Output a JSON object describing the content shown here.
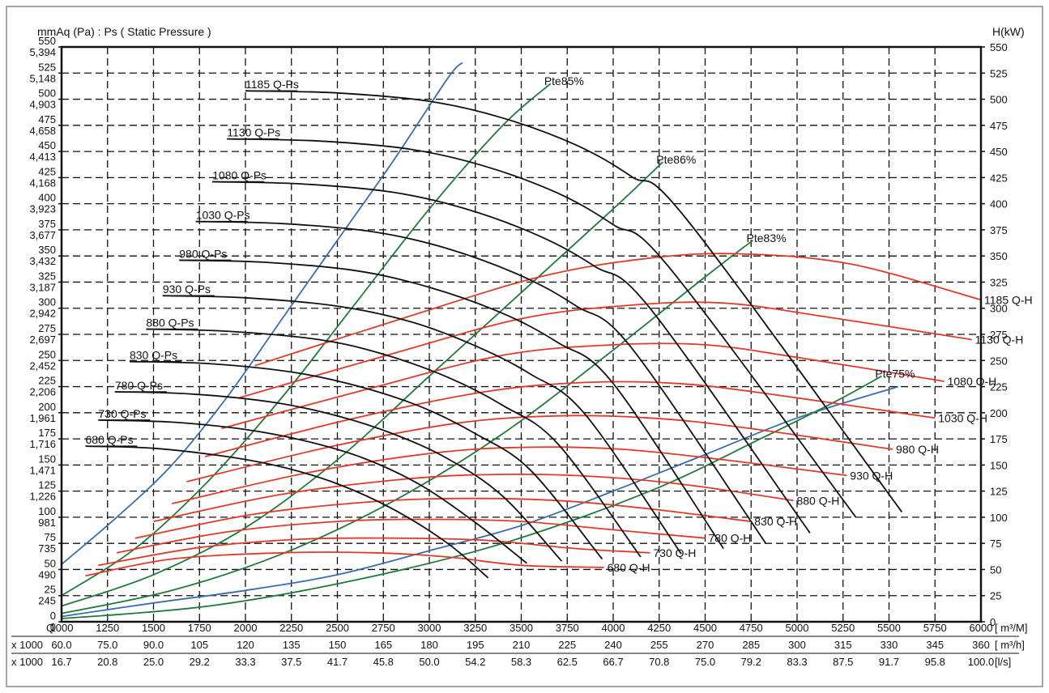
{
  "chart_data": {
    "type": "line",
    "title": "",
    "ylabel_left": "mmAq (Pa) : Ps ( Static Pressure )",
    "ylabel_right": "H(kW)",
    "xlim": [
      1000,
      6000
    ],
    "ylim": [
      0,
      550
    ],
    "grid": true,
    "x_ticks": {
      "prefix": "Q",
      "unit": "[ m³/M]",
      "values": [
        "1000",
        "1250",
        "1500",
        "1750",
        "2000",
        "2250",
        "2500",
        "2750",
        "3000",
        "3250",
        "3500",
        "3750",
        "4000",
        "4250",
        "4500",
        "4750",
        "5000",
        "5250",
        "5500",
        "5750",
        "6000"
      ]
    },
    "x_ticks_m3h": {
      "prefix": "x 1000",
      "unit": "[ m³/h]",
      "values": [
        "60.0",
        "75.0",
        "90.0",
        "105",
        "120",
        "135",
        "150",
        "165",
        "180",
        "195",
        "210",
        "225",
        "240",
        "255",
        "270",
        "285",
        "300",
        "315",
        "330",
        "345",
        "360"
      ]
    },
    "x_ticks_ls": {
      "prefix": "x 1000",
      "unit": "[l/s]",
      "values": [
        "16.7",
        "20.8",
        "25.0",
        "29.2",
        "33.3",
        "37.5",
        "41.7",
        "45.8",
        "50.0",
        "54.2",
        "58.3",
        "62.5",
        "66.7",
        "70.8",
        "75.0",
        "79.2",
        "83.3",
        "87.5",
        "91.7",
        "95.8",
        "100.0"
      ]
    },
    "y_ticks_mmaq": [
      "0",
      "25",
      "50",
      "75",
      "100",
      "125",
      "150",
      "175",
      "200",
      "225",
      "250",
      "275",
      "300",
      "325",
      "350",
      "375",
      "400",
      "425",
      "450",
      "475",
      "500",
      "525",
      "550"
    ],
    "y_ticks_pa": [
      "0",
      "245",
      "490",
      "735",
      "981",
      "1,226",
      "1,471",
      "1,716",
      "1,961",
      "2,206",
      "2,452",
      "2,697",
      "2,942",
      "3,187",
      "3,432",
      "3,677",
      "3,923",
      "4,168",
      "4,413",
      "4,658",
      "4,903",
      "5,148",
      "5,394"
    ],
    "y_ticks_kw": [
      "0",
      "25",
      "50",
      "75",
      "100",
      "125",
      "150",
      "175",
      "200",
      "225",
      "250",
      "275",
      "300",
      "325",
      "350",
      "375",
      "400",
      "425",
      "450",
      "475",
      "500",
      "525",
      "550"
    ],
    "pressure_curves": [
      {
        "name": "680 Q-Ps",
        "label_at": [
          1130,
          168
        ],
        "points": [
          [
            1130,
            168
          ],
          [
            1500,
            166
          ],
          [
            1900,
            158
          ],
          [
            2200,
            148
          ],
          [
            2500,
            132
          ],
          [
            2800,
            108
          ],
          [
            3100,
            75
          ],
          [
            3320,
            42
          ]
        ]
      },
      {
        "name": "730 Q-Ps",
        "label_at": [
          1200,
          193
        ],
        "points": [
          [
            1200,
            193
          ],
          [
            1600,
            191
          ],
          [
            2000,
            184
          ],
          [
            2350,
            172
          ],
          [
            2650,
            156
          ],
          [
            2950,
            131
          ],
          [
            3250,
            95
          ],
          [
            3530,
            56
          ]
        ]
      },
      {
        "name": "780 Q-Ps",
        "label_at": [
          1290,
          220
        ],
        "points": [
          [
            1290,
            220
          ],
          [
            1700,
            218
          ],
          [
            2150,
            210
          ],
          [
            2500,
            197
          ],
          [
            2800,
            180
          ],
          [
            3100,
            156
          ],
          [
            3400,
            120
          ],
          [
            3720,
            58
          ]
        ]
      },
      {
        "name": "830 Q-Ps",
        "label_at": [
          1370,
          249
        ],
        "points": [
          [
            1370,
            249
          ],
          [
            1800,
            247
          ],
          [
            2250,
            239
          ],
          [
            2600,
            226
          ],
          [
            2950,
            206
          ],
          [
            3250,
            180
          ],
          [
            3550,
            145
          ],
          [
            3940,
            60
          ]
        ]
      },
      {
        "name": "880 Q-Ps",
        "label_at": [
          1460,
          280
        ],
        "points": [
          [
            1460,
            280
          ],
          [
            1900,
            278
          ],
          [
            2400,
            270
          ],
          [
            2750,
            256
          ],
          [
            3100,
            234
          ],
          [
            3400,
            207
          ],
          [
            3700,
            170
          ],
          [
            4150,
            62
          ]
        ]
      },
      {
        "name": "930 Q-Ps",
        "label_at": [
          1550,
          312
        ],
        "points": [
          [
            1550,
            312
          ],
          [
            2000,
            310
          ],
          [
            2500,
            302
          ],
          [
            2900,
            287
          ],
          [
            3250,
            264
          ],
          [
            3550,
            237
          ],
          [
            3850,
            198
          ],
          [
            4370,
            65
          ]
        ]
      },
      {
        "name": "980 Q-Ps",
        "label_at": [
          1640,
          346
        ],
        "points": [
          [
            1640,
            346
          ],
          [
            2100,
            344
          ],
          [
            2600,
            336
          ],
          [
            3000,
            320
          ],
          [
            3400,
            295
          ],
          [
            3700,
            267
          ],
          [
            4000,
            228
          ],
          [
            4600,
            70
          ]
        ]
      },
      {
        "name": "1030 Q-Ps",
        "label_at": [
          1730,
          383
        ],
        "points": [
          [
            1730,
            383
          ],
          [
            2200,
            381
          ],
          [
            2700,
            373
          ],
          [
            3100,
            357
          ],
          [
            3500,
            331
          ],
          [
            3800,
            302
          ],
          [
            4100,
            262
          ],
          [
            4830,
            75
          ]
        ]
      },
      {
        "name": "1080 Q-Ps",
        "label_at": [
          1820,
          421
        ],
        "points": [
          [
            1820,
            421
          ],
          [
            2300,
            419
          ],
          [
            2800,
            411
          ],
          [
            3200,
            395
          ],
          [
            3600,
            369
          ],
          [
            3900,
            340
          ],
          [
            4200,
            300
          ],
          [
            5070,
            85
          ]
        ]
      },
      {
        "name": "1130 Q-Ps",
        "label_at": [
          1900,
          462
        ],
        "points": [
          [
            1900,
            462
          ],
          [
            2400,
            460
          ],
          [
            2900,
            452
          ],
          [
            3300,
            436
          ],
          [
            3700,
            410
          ],
          [
            4000,
            380
          ],
          [
            4300,
            340
          ],
          [
            5320,
            100
          ]
        ]
      },
      {
        "name": "1185 Q-Ps",
        "label_at": [
          2000,
          508
        ],
        "points": [
          [
            2000,
            508
          ],
          [
            2500,
            506
          ],
          [
            3000,
            498
          ],
          [
            3400,
            482
          ],
          [
            3800,
            456
          ],
          [
            4100,
            426
          ],
          [
            4400,
            385
          ],
          [
            5570,
            105
          ]
        ]
      }
    ],
    "power_curves": [
      {
        "name": "680 Q-H",
        "points": [
          [
            1130,
            44
          ],
          [
            1600,
            60
          ],
          [
            2200,
            66
          ],
          [
            2700,
            66
          ],
          [
            3100,
            62
          ],
          [
            3500,
            54
          ],
          [
            3950,
            52
          ]
        ]
      },
      {
        "name": "730 Q-H",
        "points": [
          [
            1200,
            54
          ],
          [
            1750,
            71
          ],
          [
            2300,
            79
          ],
          [
            2800,
            80
          ],
          [
            3300,
            78
          ],
          [
            3800,
            70
          ],
          [
            4200,
            66
          ]
        ]
      },
      {
        "name": "780 Q-H",
        "points": [
          [
            1300,
            66
          ],
          [
            1900,
            86
          ],
          [
            2500,
            96
          ],
          [
            3000,
            98
          ],
          [
            3500,
            96
          ],
          [
            4000,
            88
          ],
          [
            4500,
            80
          ]
        ]
      },
      {
        "name": "830 Q-H",
        "points": [
          [
            1400,
            80
          ],
          [
            2050,
            103
          ],
          [
            2700,
            115
          ],
          [
            3200,
            118
          ],
          [
            3700,
            116
          ],
          [
            4200,
            108
          ],
          [
            4750,
            96
          ]
        ]
      },
      {
        "name": "880 Q-H",
        "points": [
          [
            1500,
            96
          ],
          [
            2200,
            122
          ],
          [
            2900,
            137
          ],
          [
            3400,
            141
          ],
          [
            3900,
            139
          ],
          [
            4400,
            131
          ],
          [
            4980,
            116
          ]
        ]
      },
      {
        "name": "930 Q-H",
        "points": [
          [
            1600,
            113
          ],
          [
            2350,
            143
          ],
          [
            3050,
            162
          ],
          [
            3550,
            167
          ],
          [
            4050,
            165
          ],
          [
            4600,
            155
          ],
          [
            5270,
            140
          ]
        ]
      },
      {
        "name": "980 Q-H",
        "points": [
          [
            1680,
            134
          ],
          [
            2450,
            167
          ],
          [
            3150,
            190
          ],
          [
            3700,
            197
          ],
          [
            4200,
            195
          ],
          [
            4700,
            186
          ],
          [
            5520,
            165
          ]
        ]
      },
      {
        "name": "1030 Q-H",
        "points": [
          [
            1780,
            158
          ],
          [
            2550,
            193
          ],
          [
            3300,
            220
          ],
          [
            3850,
            229
          ],
          [
            4350,
            228
          ],
          [
            4850,
            218
          ],
          [
            5750,
            195
          ]
        ]
      },
      {
        "name": "1080 Q-H",
        "points": [
          [
            1870,
            185
          ],
          [
            2650,
            222
          ],
          [
            3400,
            255
          ],
          [
            4000,
            265
          ],
          [
            4500,
            265
          ],
          [
            5000,
            253
          ],
          [
            5800,
            230
          ]
        ]
      },
      {
        "name": "1130 Q-H",
        "points": [
          [
            1960,
            214
          ],
          [
            2750,
            254
          ],
          [
            3500,
            290
          ],
          [
            4100,
            303
          ],
          [
            4600,
            305
          ],
          [
            5150,
            292
          ],
          [
            5950,
            270
          ]
        ]
      },
      {
        "name": "1185 Q-H",
        "points": [
          [
            2050,
            245
          ],
          [
            2850,
            290
          ],
          [
            3600,
            330
          ],
          [
            4200,
            348
          ],
          [
            4700,
            352
          ],
          [
            5300,
            342
          ],
          [
            6000,
            308
          ]
        ]
      }
    ],
    "efficiency_curves": [
      {
        "name": "Pte85%",
        "points": [
          [
            1000,
            25
          ],
          [
            1400,
            70
          ],
          [
            1800,
            135
          ],
          [
            2200,
            215
          ],
          [
            2600,
            305
          ],
          [
            3000,
            395
          ],
          [
            3400,
            475
          ],
          [
            3660,
            515
          ]
        ]
      },
      {
        "name": "Pte86%",
        "points": [
          [
            1000,
            15
          ],
          [
            1500,
            45
          ],
          [
            2000,
            90
          ],
          [
            2500,
            155
          ],
          [
            3000,
            235
          ],
          [
            3500,
            315
          ],
          [
            4000,
            395
          ],
          [
            4270,
            440
          ]
        ]
      },
      {
        "name": "Pte83%",
        "points": [
          [
            1000,
            8
          ],
          [
            1600,
            30
          ],
          [
            2200,
            65
          ],
          [
            2800,
            115
          ],
          [
            3400,
            180
          ],
          [
            4000,
            260
          ],
          [
            4500,
            330
          ],
          [
            4760,
            365
          ]
        ]
      },
      {
        "name": "Pte75%",
        "points": [
          [
            1000,
            3
          ],
          [
            1800,
            15
          ],
          [
            2600,
            40
          ],
          [
            3400,
            75
          ],
          [
            4200,
            125
          ],
          [
            4800,
            175
          ],
          [
            5200,
            210
          ],
          [
            5460,
            235
          ]
        ]
      }
    ],
    "system_curves": [
      {
        "name": "",
        "points": [
          [
            1000,
            55
          ],
          [
            1300,
            100
          ],
          [
            1600,
            150
          ],
          [
            1900,
            215
          ],
          [
            2200,
            290
          ],
          [
            2500,
            365
          ],
          [
            2800,
            440
          ],
          [
            3100,
            520
          ],
          [
            3180,
            535
          ]
        ]
      },
      {
        "name": "",
        "points": [
          [
            1000,
            5
          ],
          [
            1500,
            18
          ],
          [
            2000,
            30
          ],
          [
            2500,
            45
          ],
          [
            3000,
            68
          ],
          [
            3500,
            92
          ],
          [
            4000,
            125
          ],
          [
            4500,
            160
          ],
          [
            5000,
            195
          ],
          [
            5550,
            225
          ]
        ]
      }
    ],
    "colors": {
      "pressure": "#111111",
      "power": "#e03a2a",
      "efficiency": "#1f7a3a",
      "system": "#3b6cb0",
      "grid": "#111111"
    }
  }
}
